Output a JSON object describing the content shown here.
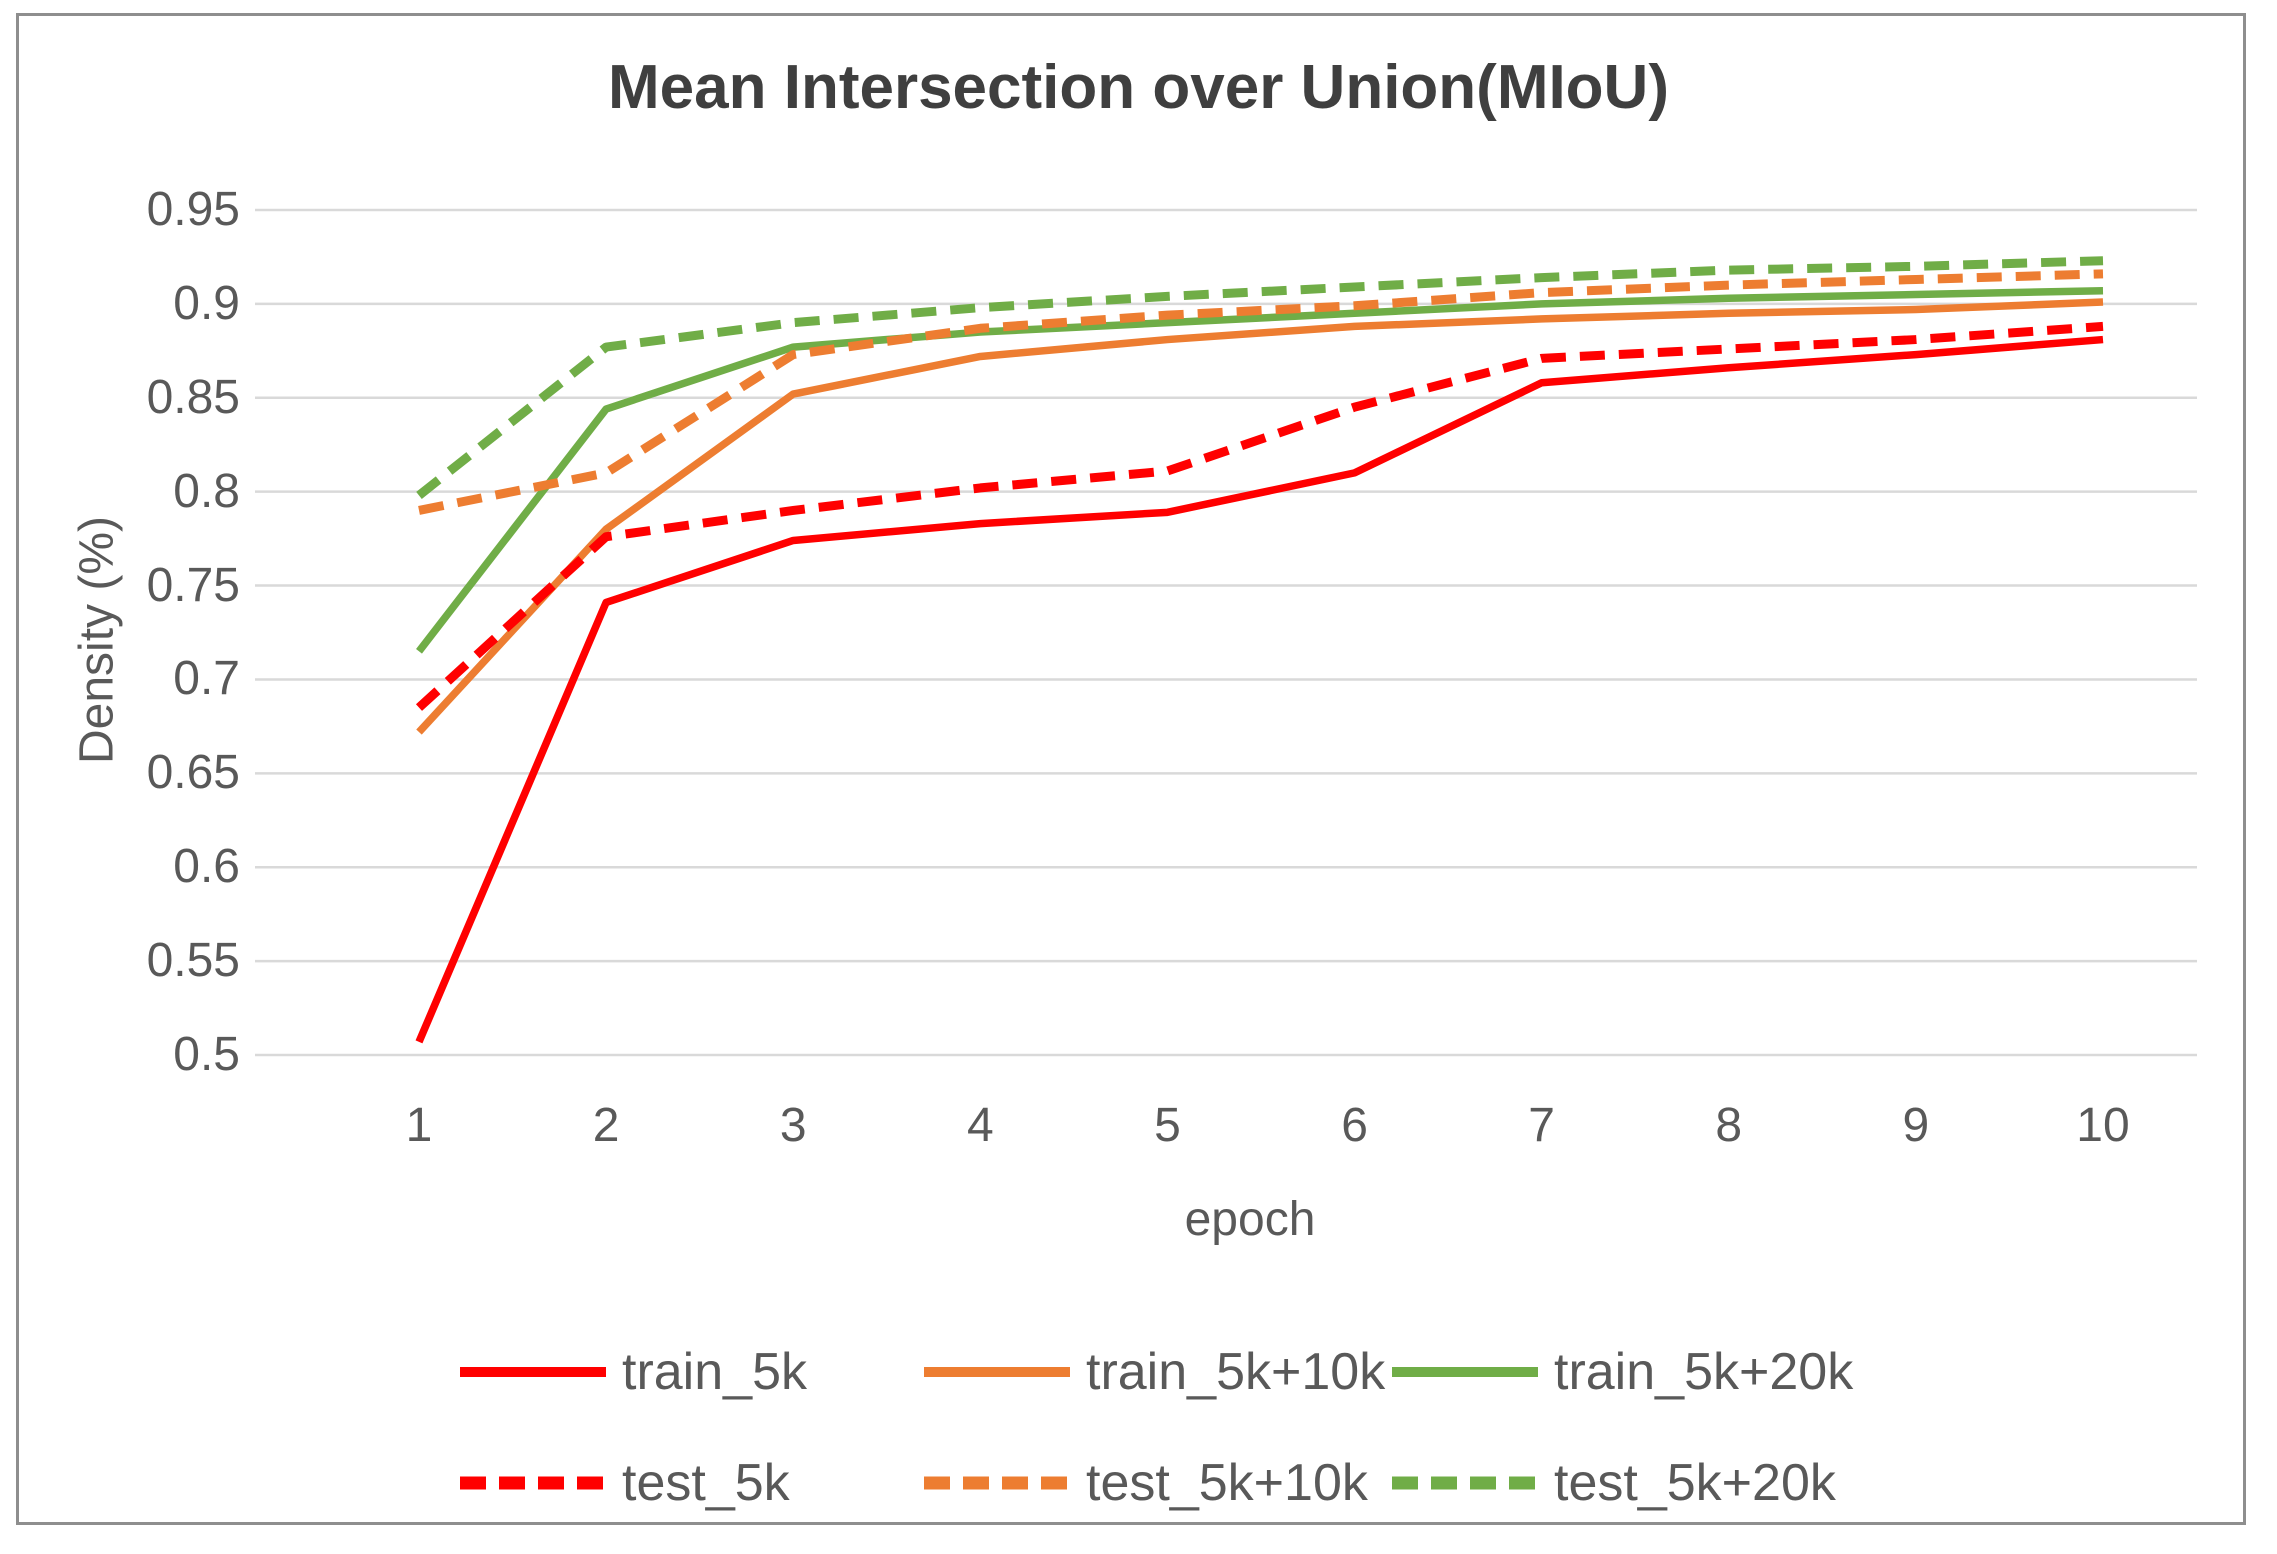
{
  "title": "Mean Intersection over Union(MIoU)",
  "chart_data": {
    "type": "line",
    "title": "Mean Intersection over Union(MIoU)",
    "xlabel": "epoch",
    "ylabel": "Density (%)",
    "x": [
      1,
      2,
      3,
      4,
      5,
      6,
      7,
      8,
      9,
      10
    ],
    "xlim": [
      1,
      10
    ],
    "ylim": [
      0.5,
      0.95
    ],
    "ytick_labels": [
      "0.95",
      "0.9",
      "0.85",
      "0.8",
      "0.75",
      "0.7",
      "0.65",
      "0.6",
      "0.55",
      "0.5"
    ],
    "xtick_labels": [
      "1",
      "2",
      "3",
      "4",
      "5",
      "6",
      "7",
      "8",
      "9",
      "10"
    ],
    "grid": true,
    "gridline_color": "#d9d9d9",
    "legend_position": "bottom",
    "colors": {
      "red": "#ff0000",
      "orange": "#ed7d31",
      "green": "#70ad47"
    },
    "series": [
      {
        "name": "train_5k",
        "style": "solid",
        "color": "#ff0000",
        "values": [
          0.507,
          0.741,
          0.774,
          0.783,
          0.789,
          0.81,
          0.858,
          0.866,
          0.873,
          0.881
        ]
      },
      {
        "name": "train_5k+10k",
        "style": "solid",
        "color": "#ed7d31",
        "values": [
          0.672,
          0.78,
          0.852,
          0.872,
          0.881,
          0.888,
          0.892,
          0.895,
          0.897,
          0.901
        ]
      },
      {
        "name": "train_5k+20k",
        "style": "solid",
        "color": "#70ad47",
        "values": [
          0.715,
          0.844,
          0.877,
          0.885,
          0.89,
          0.895,
          0.9,
          0.903,
          0.905,
          0.907
        ]
      },
      {
        "name": "test_5k",
        "style": "dashed",
        "color": "#ff0000",
        "values": [
          0.685,
          0.776,
          0.79,
          0.802,
          0.811,
          0.845,
          0.871,
          0.876,
          0.881,
          0.888
        ]
      },
      {
        "name": "test_5k+10k",
        "style": "dashed",
        "color": "#ed7d31",
        "values": [
          0.79,
          0.81,
          0.873,
          0.887,
          0.894,
          0.899,
          0.906,
          0.91,
          0.913,
          0.916
        ]
      },
      {
        "name": "test_5k+20k",
        "style": "dashed",
        "color": "#70ad47",
        "values": [
          0.798,
          0.877,
          0.89,
          0.898,
          0.904,
          0.909,
          0.914,
          0.918,
          0.92,
          0.923
        ]
      }
    ],
    "legend_rows": [
      [
        "train_5k",
        "train_5k+10k",
        "train_5k+20k"
      ],
      [
        "test_5k",
        "test_5k+10k",
        "test_5k+20k"
      ]
    ]
  }
}
